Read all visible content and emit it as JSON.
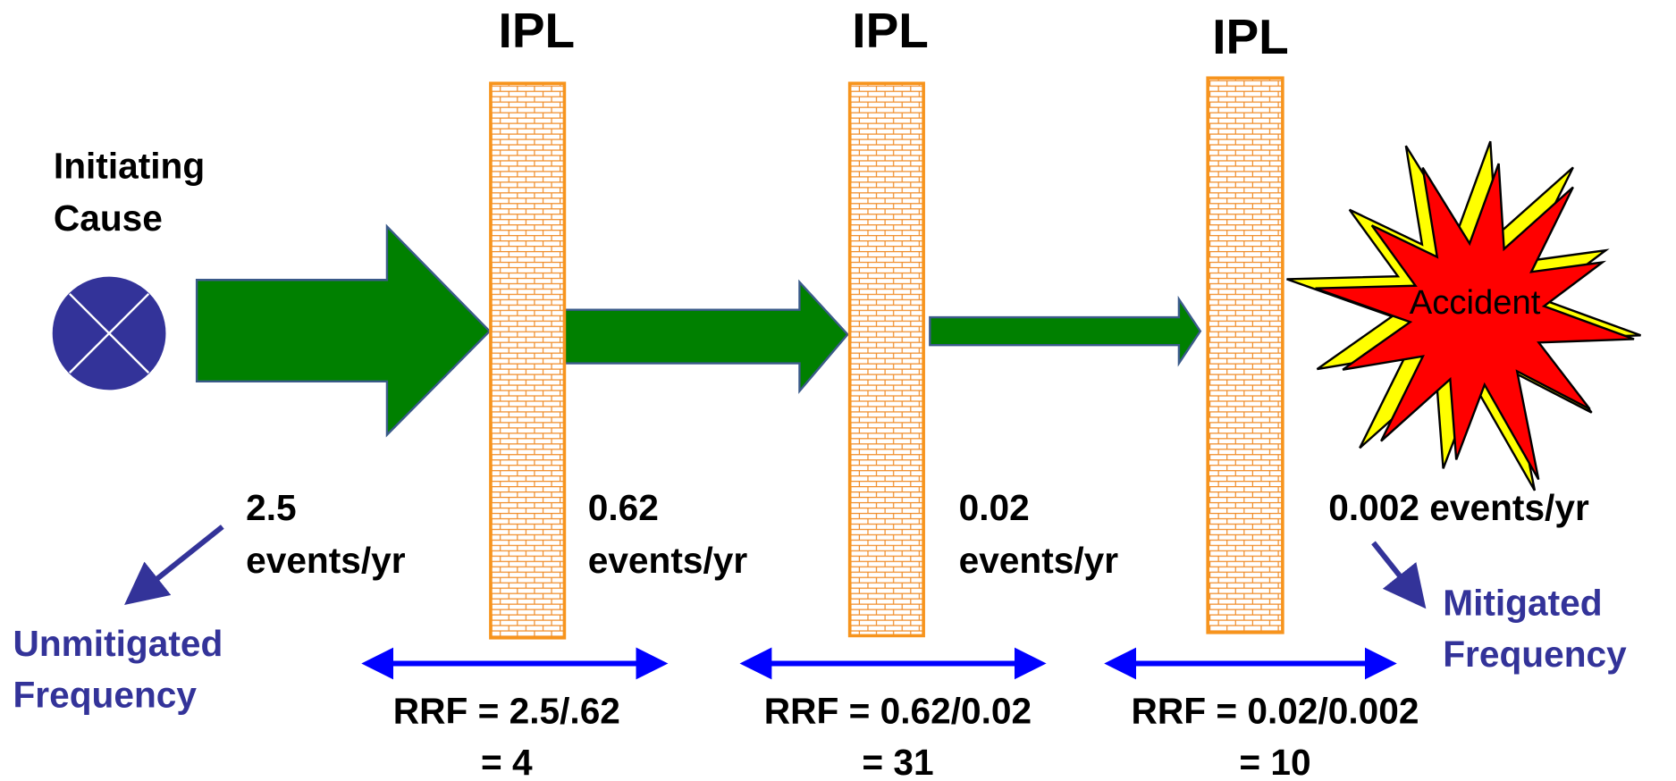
{
  "ipl_labels": [
    "IPL",
    "IPL",
    "IPL"
  ],
  "initiating_cause": [
    "Initiating",
    "Cause"
  ],
  "frequencies": [
    [
      "2.5",
      "events/yr"
    ],
    [
      "0.62",
      "events/yr"
    ],
    [
      "0.02",
      "events/yr"
    ],
    [
      "0.002 events/yr"
    ]
  ],
  "accident": "Accident",
  "unmitigated_label": [
    "Unmitigated",
    "Frequency"
  ],
  "mitigated_label": [
    "Mitigated",
    "Frequency"
  ],
  "rrf": [
    [
      "RRF = 2.5/.62",
      "= 4"
    ],
    [
      "RRF = 0.62/0.02",
      "= 31"
    ],
    [
      "RRF = 0.02/0.002",
      "= 10"
    ]
  ]
}
